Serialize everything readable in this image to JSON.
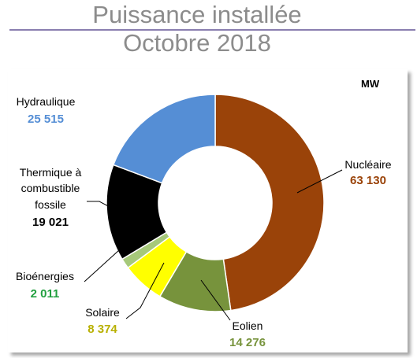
{
  "header": {
    "title_line1": "Puissance installée",
    "title_line2": "Octobre 2018"
  },
  "colors": {
    "title_rule": "#8a7fb0",
    "nucleaire": "#9a4309",
    "eolien": "#77933c",
    "solaire": "#ffff00",
    "bioenergies": "#a6c97a",
    "thermique": "#000000",
    "hydraulique": "#558ed5"
  },
  "chart_data": {
    "type": "pie",
    "donut": true,
    "unit": "MW",
    "legend": "none",
    "slices": [
      {
        "name": "Nucléaire",
        "value": 63130,
        "value_label": "63 130",
        "color": "#9a4309",
        "value_color": "#9a4309"
      },
      {
        "name": "Eolien",
        "value": 14276,
        "value_label": "14 276",
        "color": "#77933c",
        "value_color": "#77933c"
      },
      {
        "name": "Solaire",
        "value": 8374,
        "value_label": "8 374",
        "color": "#ffff00",
        "value_color": "#b8b000"
      },
      {
        "name": "Bioénergies",
        "value": 2011,
        "value_label": "2 011",
        "color": "#a6c97a",
        "value_color": "#22a040"
      },
      {
        "name": "Thermique à combustible fossile",
        "value": 19021,
        "value_label": "19 021",
        "color": "#000000",
        "value_color": "#000000"
      },
      {
        "name": "Hydraulique",
        "value": 25515,
        "value_label": "25 515",
        "color": "#558ed5",
        "value_color": "#558ed5"
      }
    ],
    "labels": {
      "nucleaire": "Nucléaire",
      "eolien": "Eolien",
      "solaire": "Solaire",
      "bioenergies": "Bioénergies",
      "thermique_l1": "Thermique à",
      "thermique_l2": "combustible",
      "thermique_l3": "fossile",
      "hydraulique": "Hydraulique"
    }
  }
}
